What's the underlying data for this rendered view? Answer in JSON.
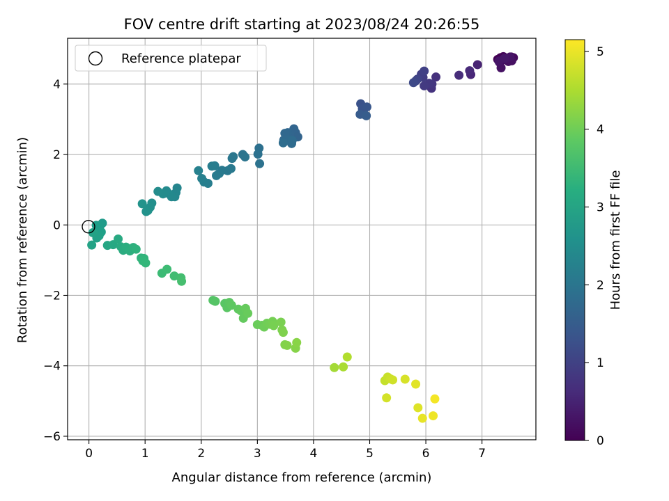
{
  "chart_data": {
    "type": "scatter",
    "title": "FOV centre drift starting at 2023/08/24 20:26:55",
    "xlabel": "Angular distance from reference (arcmin)",
    "ylabel": "Rotation from reference (arcmin)",
    "xlim": [
      -0.38,
      7.96
    ],
    "ylim": [
      -6.1,
      5.3
    ],
    "xticks": [
      "0",
      "1",
      "2",
      "3",
      "4",
      "5",
      "6",
      "7"
    ],
    "yticks": [
      "−6",
      "−4",
      "−2",
      "0",
      "2",
      "4"
    ],
    "grid": true,
    "legend": {
      "placement": "top-left",
      "entries": [
        "Reference platepar"
      ]
    },
    "reference_point": {
      "x": 0,
      "y": 0
    },
    "colorbar": {
      "label": "Hours from first FF file",
      "range": [
        0,
        5.15
      ],
      "ticks": [
        "0",
        "1",
        "2",
        "3",
        "4",
        "5"
      ],
      "colormap": "viridis"
    },
    "series": [
      {
        "x": [
          7.28,
          7.33,
          7.38,
          7.43,
          7.48,
          7.52,
          7.56,
          7.31,
          7.36,
          7.41,
          7.47,
          7.53,
          7.34,
          7.44,
          7.5,
          7.3,
          7.4,
          6.92,
          6.8,
          6.78,
          6.59,
          6.18,
          6.1,
          6.11,
          6.06,
          5.97,
          5.95,
          5.92,
          5.97,
          5.85,
          5.82,
          5.78,
          4.84,
          4.87,
          4.95,
          4.91,
          4.83,
          4.94,
          3.68,
          3.72,
          3.65,
          3.58,
          3.54,
          3.49,
          3.47,
          3.55,
          3.61,
          3.62,
          3.46,
          3.03,
          3.01,
          3.04,
          2.74,
          2.78,
          2.57,
          2.55,
          2.47,
          2.53,
          2.37,
          2.32,
          2.27,
          2.24,
          2.19,
          2.12,
          2.05,
          2.01,
          1.95,
          1.57,
          1.55,
          1.53,
          1.47,
          1.42,
          1.38,
          1.32,
          1.23,
          1.12,
          1.09,
          1.05,
          1.02,
          0.95,
          0.24,
          0.2,
          0.17,
          0.13,
          0.1,
          0.22,
          0.18,
          0.14,
          0.07,
          0.05,
          0.33,
          0.43,
          0.52,
          0.57,
          0.61,
          0.66,
          0.73,
          0.79,
          0.84,
          0.93,
          0.98,
          0.96,
          1.01,
          1.3,
          1.39,
          1.52,
          1.64,
          1.65,
          2.21,
          2.25,
          2.42,
          2.46,
          2.5,
          2.54,
          2.66,
          2.71,
          2.75,
          2.79,
          2.83,
          3.0,
          3.08,
          3.12,
          3.17,
          3.22,
          3.27,
          3.29,
          3.42,
          3.44,
          3.46,
          3.49,
          3.53,
          3.68,
          3.7,
          4.37,
          4.53,
          4.6,
          5.27,
          5.32,
          5.37,
          5.41,
          5.3,
          5.63,
          5.86,
          5.82,
          5.94,
          6.13,
          6.16
        ],
        "y": [
          4.7,
          4.75,
          4.78,
          4.72,
          4.74,
          4.77,
          4.75,
          4.62,
          4.68,
          4.7,
          4.64,
          4.66,
          4.46,
          4.72,
          4.77,
          4.65,
          4.73,
          4.55,
          4.27,
          4.38,
          4.25,
          4.2,
          3.88,
          4.0,
          4.02,
          3.95,
          4.19,
          4.28,
          4.37,
          4.14,
          4.09,
          4.04,
          3.44,
          3.3,
          3.35,
          3.13,
          3.14,
          3.1,
          2.62,
          2.5,
          2.73,
          2.58,
          2.62,
          2.6,
          2.41,
          2.42,
          2.31,
          2.4,
          2.33,
          2.18,
          2.01,
          1.74,
          2.0,
          1.93,
          1.94,
          1.89,
          1.54,
          1.6,
          1.55,
          1.46,
          1.4,
          1.68,
          1.67,
          1.18,
          1.22,
          1.32,
          1.54,
          1.05,
          0.92,
          0.8,
          0.8,
          0.89,
          0.97,
          0.88,
          0.95,
          0.62,
          0.5,
          0.41,
          0.38,
          0.6,
          0.05,
          -0.02,
          -0.12,
          -0.01,
          -0.21,
          -0.2,
          -0.31,
          -0.37,
          -0.22,
          -0.57,
          -0.58,
          -0.56,
          -0.4,
          -0.62,
          -0.72,
          -0.63,
          -0.74,
          -0.64,
          -0.69,
          -0.94,
          -0.95,
          -1.02,
          -1.08,
          -1.37,
          -1.26,
          -1.45,
          -1.5,
          -1.6,
          -2.14,
          -2.17,
          -2.23,
          -2.35,
          -2.2,
          -2.28,
          -2.39,
          -2.44,
          -2.65,
          -2.37,
          -2.51,
          -2.83,
          -2.85,
          -2.9,
          -2.79,
          -2.82,
          -2.74,
          -2.86,
          -2.76,
          -2.98,
          -3.05,
          -3.4,
          -3.42,
          -3.5,
          -3.34,
          -4.05,
          -4.03,
          -3.75,
          -4.42,
          -4.32,
          -4.37,
          -4.4,
          -4.91,
          -4.38,
          -5.19,
          -4.52,
          -5.49,
          -5.42,
          -4.94
        ],
        "hours": [
          0.0,
          0.02,
          0.04,
          0.06,
          0.08,
          0.1,
          0.12,
          0.14,
          0.16,
          0.18,
          0.2,
          0.22,
          0.24,
          0.26,
          0.28,
          0.3,
          0.32,
          0.5,
          0.55,
          0.6,
          0.65,
          0.72,
          0.76,
          0.8,
          0.84,
          0.88,
          0.92,
          0.96,
          1.0,
          1.04,
          1.08,
          1.12,
          1.3,
          1.34,
          1.38,
          1.42,
          1.46,
          1.5,
          1.62,
          1.64,
          1.66,
          1.68,
          1.7,
          1.72,
          1.74,
          1.76,
          1.78,
          1.8,
          1.82,
          1.9,
          1.92,
          1.94,
          1.98,
          2.0,
          2.02,
          2.04,
          2.06,
          2.08,
          2.1,
          2.12,
          2.14,
          2.16,
          2.18,
          2.2,
          2.22,
          2.24,
          2.26,
          2.35,
          2.37,
          2.39,
          2.41,
          2.43,
          2.45,
          2.47,
          2.49,
          2.55,
          2.57,
          2.59,
          2.61,
          2.63,
          2.8,
          2.82,
          2.84,
          2.86,
          2.88,
          2.9,
          2.92,
          2.94,
          2.96,
          2.98,
          3.05,
          3.08,
          3.11,
          3.14,
          3.17,
          3.2,
          3.23,
          3.26,
          3.29,
          3.32,
          3.35,
          3.38,
          3.41,
          3.5,
          3.53,
          3.56,
          3.59,
          3.62,
          3.75,
          3.77,
          3.79,
          3.81,
          3.83,
          3.85,
          3.87,
          3.89,
          3.91,
          3.93,
          3.95,
          3.97,
          3.99,
          4.01,
          4.03,
          4.05,
          4.07,
          4.09,
          4.11,
          4.13,
          4.15,
          4.17,
          4.19,
          4.21,
          4.23,
          4.45,
          4.5,
          4.55,
          4.7,
          4.73,
          4.76,
          4.79,
          4.82,
          4.85,
          4.9,
          4.93,
          4.98,
          5.03,
          5.08
        ]
      }
    ]
  }
}
